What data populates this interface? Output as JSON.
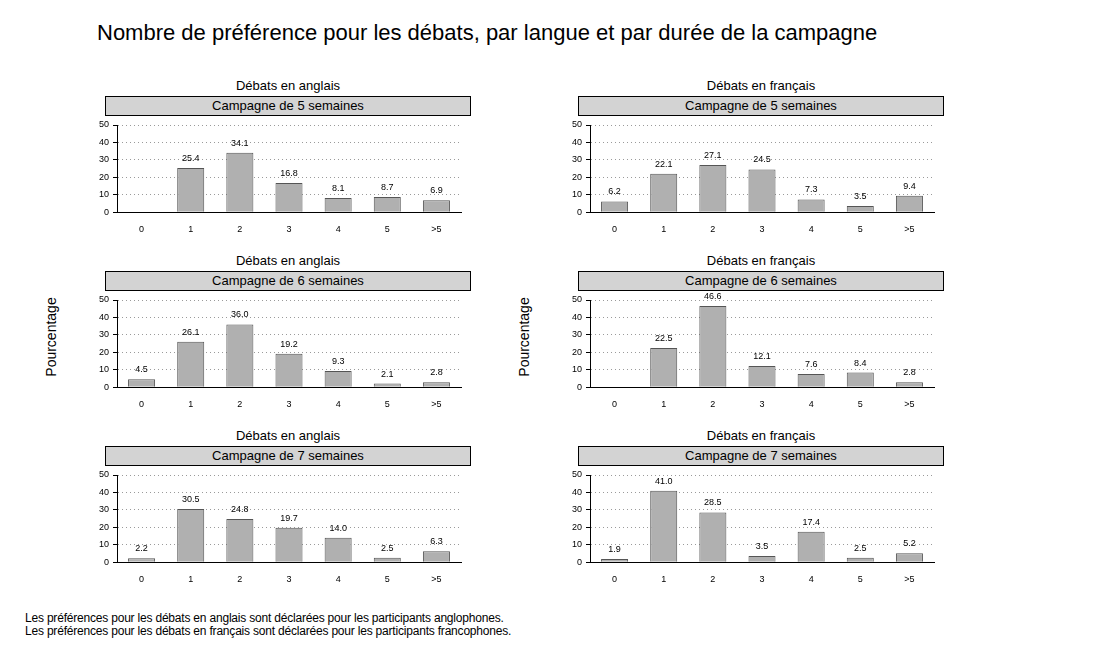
{
  "title": "Nombre de préférence pour les débats, par langue et par durée de la campagne",
  "notes": [
    "Les préférences pour les débats en anglais sont déclarées pour les participants anglophones.",
    "Les préférences pour les débats en français sont déclarées pour les participants francophones."
  ],
  "chart_data": [
    {
      "type": "bar",
      "title": "Débats en anglais",
      "subtitle": "Campagne de 5 semaines",
      "categories": [
        "0",
        "1",
        "2",
        "3",
        "4",
        "5",
        ">5"
      ],
      "values": [
        null,
        25.4,
        34.1,
        16.8,
        8.1,
        8.7,
        6.9
      ],
      "value_labels": [
        null,
        "25.4",
        "34.1",
        "16.8",
        "8.1",
        "8.7",
        "6.9"
      ],
      "color": "#b0b0b0",
      "ylim": [
        0,
        50
      ],
      "yticks": [
        0,
        10,
        20,
        30,
        40,
        50
      ],
      "grid": true,
      "data_labels": true
    },
    {
      "type": "bar",
      "title": "Débats en français",
      "subtitle": "Campagne de 5 semaines",
      "categories": [
        "0",
        "1",
        "2",
        "3",
        "4",
        "5",
        ">5"
      ],
      "values": [
        6.2,
        22.1,
        27.1,
        24.5,
        7.3,
        3.5,
        9.4
      ],
      "value_labels": [
        "6.2",
        "22.1",
        "27.1",
        "24.5",
        "7.3",
        "3.5",
        "9.4"
      ],
      "color": "#b0b0b0",
      "ylim": [
        0,
        50
      ],
      "yticks": [
        0,
        10,
        20,
        30,
        40,
        50
      ],
      "grid": true,
      "data_labels": true
    },
    {
      "type": "bar",
      "title": "Débats en anglais",
      "subtitle": "Campagne de 6 semaines",
      "ylabel": "Pourcentage",
      "categories": [
        "0",
        "1",
        "2",
        "3",
        "4",
        "5",
        ">5"
      ],
      "values": [
        4.5,
        26.1,
        36.0,
        19.2,
        9.3,
        2.1,
        2.8
      ],
      "value_labels": [
        "4.5",
        "26.1",
        "36.0",
        "19.2",
        "9.3",
        "2.1",
        "2.8"
      ],
      "color": "#b0b0b0",
      "ylim": [
        0,
        50
      ],
      "yticks": [
        0,
        10,
        20,
        30,
        40,
        50
      ],
      "grid": true,
      "data_labels": true
    },
    {
      "type": "bar",
      "title": "Débats en français",
      "subtitle": "Campagne de 6 semaines",
      "ylabel": "Pourcentage",
      "categories": [
        "0",
        "1",
        "2",
        "3",
        "4",
        "5",
        ">5"
      ],
      "values": [
        null,
        22.5,
        46.6,
        12.1,
        7.6,
        8.4,
        2.8
      ],
      "value_labels": [
        null,
        "22.5",
        "46.6",
        "12.1",
        "7.6",
        "8.4",
        "2.8"
      ],
      "color": "#b0b0b0",
      "ylim": [
        0,
        50
      ],
      "yticks": [
        0,
        10,
        20,
        30,
        40,
        50
      ],
      "grid": true,
      "data_labels": true
    },
    {
      "type": "bar",
      "title": "Débats en anglais",
      "subtitle": "Campagne de 7 semaines",
      "categories": [
        "0",
        "1",
        "2",
        "3",
        "4",
        "5",
        ">5"
      ],
      "values": [
        2.2,
        30.5,
        24.8,
        19.7,
        14.0,
        2.5,
        6.3
      ],
      "value_labels": [
        "2.2",
        "30.5",
        "24.8",
        "19.7",
        "14.0",
        "2.5",
        "6.3"
      ],
      "color": "#b0b0b0",
      "ylim": [
        0,
        50
      ],
      "yticks": [
        0,
        10,
        20,
        30,
        40,
        50
      ],
      "grid": true,
      "data_labels": true
    },
    {
      "type": "bar",
      "title": "Débats en français",
      "subtitle": "Campagne de 7 semaines",
      "categories": [
        "0",
        "1",
        "2",
        "3",
        "4",
        "5",
        ">5"
      ],
      "values": [
        1.9,
        41.0,
        28.5,
        3.5,
        17.4,
        2.5,
        5.2
      ],
      "value_labels": [
        "1.9",
        "41.0",
        "28.5",
        "3.5",
        "17.4",
        "2.5",
        "5.2"
      ],
      "color": "#b0b0b0",
      "ylim": [
        0,
        50
      ],
      "yticks": [
        0,
        10,
        20,
        30,
        40,
        50
      ],
      "grid": true,
      "data_labels": true
    }
  ]
}
